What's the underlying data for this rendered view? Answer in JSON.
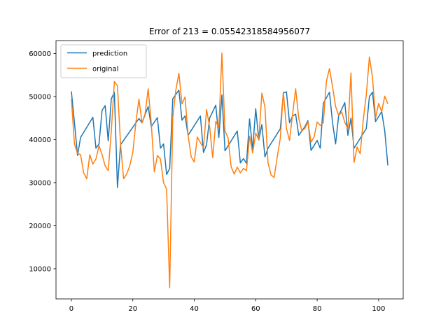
{
  "chart_data": {
    "type": "line",
    "title": "Error of 213 = 0.05542318584956077",
    "xlabel": "",
    "ylabel": "",
    "xlim": [
      -5,
      108
    ],
    "ylim": [
      3000,
      63000
    ],
    "xticks": [
      0,
      20,
      40,
      60,
      80,
      100
    ],
    "xtick_labels": [
      "0",
      "20",
      "40",
      "60",
      "80",
      "100"
    ],
    "yticks": [
      10000,
      20000,
      30000,
      40000,
      50000,
      60000
    ],
    "ytick_labels": [
      "10000",
      "20000",
      "30000",
      "40000",
      "50000",
      "60000"
    ],
    "grid": false,
    "legend_position": "upper-left",
    "series": [
      {
        "name": "prediction",
        "color": "#1f77b4",
        "points": [
          [
            0,
            51200
          ],
          [
            1,
            44000
          ],
          [
            2,
            36300
          ],
          [
            3,
            40500
          ],
          [
            7,
            45200
          ],
          [
            8,
            38000
          ],
          [
            9,
            39000
          ],
          [
            10,
            46800
          ],
          [
            11,
            47900
          ],
          [
            12,
            39700
          ],
          [
            13,
            49500
          ],
          [
            14,
            51000
          ],
          [
            15,
            28900
          ],
          [
            16,
            38800
          ],
          [
            22,
            44900
          ],
          [
            23,
            43900
          ],
          [
            25,
            47700
          ],
          [
            26,
            43000
          ],
          [
            28,
            45100
          ],
          [
            29,
            38000
          ],
          [
            30,
            39000
          ],
          [
            31,
            31900
          ],
          [
            32,
            33300
          ],
          [
            33,
            49500
          ],
          [
            35,
            51500
          ],
          [
            36,
            44500
          ],
          [
            37,
            45500
          ],
          [
            38,
            41000
          ],
          [
            42,
            45500
          ],
          [
            43,
            37000
          ],
          [
            44,
            38800
          ],
          [
            45,
            45000
          ],
          [
            47,
            48000
          ],
          [
            48,
            40500
          ],
          [
            49,
            50400
          ],
          [
            50,
            37400
          ],
          [
            54,
            42000
          ],
          [
            55,
            34600
          ],
          [
            56,
            35600
          ],
          [
            57,
            34500
          ],
          [
            58,
            44800
          ],
          [
            59,
            37700
          ],
          [
            60,
            47200
          ],
          [
            61,
            39900
          ],
          [
            62,
            43500
          ],
          [
            63,
            36000
          ],
          [
            64,
            38000
          ],
          [
            68,
            42500
          ],
          [
            69,
            50800
          ],
          [
            70,
            51100
          ],
          [
            71,
            43900
          ],
          [
            72,
            45500
          ],
          [
            73,
            45900
          ],
          [
            74,
            41000
          ],
          [
            76,
            43000
          ],
          [
            77,
            44400
          ],
          [
            78,
            37500
          ],
          [
            80,
            39800
          ],
          [
            81,
            38000
          ],
          [
            82,
            48400
          ],
          [
            84,
            51000
          ],
          [
            85,
            44000
          ],
          [
            86,
            39000
          ],
          [
            87,
            45600
          ],
          [
            89,
            48600
          ],
          [
            90,
            41000
          ],
          [
            91,
            45000
          ],
          [
            92,
            38000
          ],
          [
            96,
            42600
          ],
          [
            97,
            50000
          ],
          [
            98,
            51000
          ],
          [
            99,
            44200
          ],
          [
            101,
            46500
          ],
          [
            102,
            42000
          ],
          [
            103,
            34000
          ]
        ]
      },
      {
        "name": "original",
        "color": "#ff7f0e",
        "points": [
          [
            0,
            49500
          ],
          [
            1,
            39000
          ],
          [
            2,
            36800
          ],
          [
            3,
            36500
          ],
          [
            4,
            32300
          ],
          [
            5,
            30900
          ],
          [
            6,
            36500
          ],
          [
            7,
            34300
          ],
          [
            8,
            35500
          ],
          [
            9,
            38600
          ],
          [
            10,
            36500
          ],
          [
            11,
            33900
          ],
          [
            12,
            32800
          ],
          [
            13,
            42000
          ],
          [
            14,
            53500
          ],
          [
            15,
            52500
          ],
          [
            16,
            39000
          ],
          [
            17,
            30900
          ],
          [
            18,
            32000
          ],
          [
            19,
            33900
          ],
          [
            20,
            37000
          ],
          [
            21,
            44000
          ],
          [
            22,
            49400
          ],
          [
            23,
            43900
          ],
          [
            24,
            46000
          ],
          [
            25,
            51800
          ],
          [
            26,
            43900
          ],
          [
            27,
            32500
          ],
          [
            28,
            36300
          ],
          [
            29,
            35500
          ],
          [
            30,
            30000
          ],
          [
            31,
            28500
          ],
          [
            32,
            5600
          ],
          [
            33,
            45000
          ],
          [
            34,
            51500
          ],
          [
            35,
            55400
          ],
          [
            36,
            48300
          ],
          [
            37,
            49900
          ],
          [
            38,
            41000
          ],
          [
            39,
            36000
          ],
          [
            40,
            34800
          ],
          [
            41,
            40600
          ],
          [
            42,
            39300
          ],
          [
            43,
            38100
          ],
          [
            44,
            47000
          ],
          [
            45,
            43000
          ],
          [
            46,
            35800
          ],
          [
            47,
            44200
          ],
          [
            48,
            42800
          ],
          [
            49,
            60100
          ],
          [
            50,
            42000
          ],
          [
            51,
            40400
          ],
          [
            52,
            33700
          ],
          [
            53,
            32000
          ],
          [
            54,
            33600
          ],
          [
            55,
            32300
          ],
          [
            56,
            33300
          ],
          [
            57,
            32800
          ],
          [
            58,
            40800
          ],
          [
            59,
            36900
          ],
          [
            60,
            41500
          ],
          [
            61,
            40000
          ],
          [
            62,
            50800
          ],
          [
            63,
            47600
          ],
          [
            64,
            34600
          ],
          [
            65,
            31800
          ],
          [
            66,
            31200
          ],
          [
            67,
            36000
          ],
          [
            68,
            40300
          ],
          [
            69,
            51100
          ],
          [
            70,
            42600
          ],
          [
            71,
            39800
          ],
          [
            72,
            45900
          ],
          [
            73,
            51800
          ],
          [
            74,
            45000
          ],
          [
            75,
            42000
          ],
          [
            76,
            42600
          ],
          [
            77,
            44100
          ],
          [
            78,
            39400
          ],
          [
            79,
            40600
          ],
          [
            80,
            44100
          ],
          [
            81,
            43300
          ],
          [
            82,
            43900
          ],
          [
            83,
            53500
          ],
          [
            84,
            56500
          ],
          [
            85,
            52300
          ],
          [
            86,
            47700
          ],
          [
            87,
            45600
          ],
          [
            88,
            46400
          ],
          [
            89,
            44000
          ],
          [
            90,
            42500
          ],
          [
            91,
            55500
          ],
          [
            92,
            34700
          ],
          [
            93,
            38300
          ],
          [
            94,
            36700
          ],
          [
            95,
            44600
          ],
          [
            96,
            50500
          ],
          [
            97,
            59200
          ],
          [
            98,
            54500
          ],
          [
            99,
            45000
          ],
          [
            100,
            48400
          ],
          [
            101,
            46500
          ],
          [
            102,
            50100
          ],
          [
            103,
            48300
          ]
        ]
      }
    ]
  }
}
